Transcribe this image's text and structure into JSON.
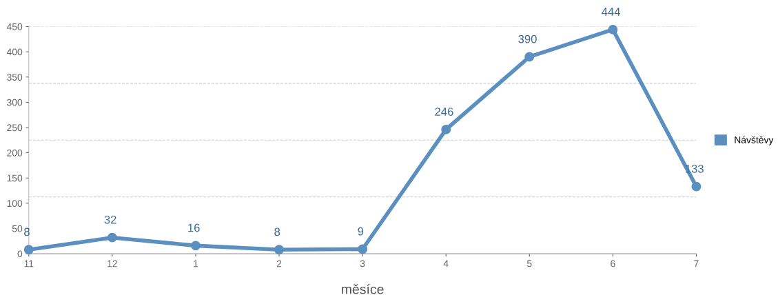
{
  "chart_data": {
    "type": "line",
    "xlabel": "měsíce",
    "categories": [
      "11",
      "12",
      "1",
      "2",
      "3",
      "4",
      "5",
      "6",
      "7"
    ],
    "series": [
      {
        "name": "Návštěvy",
        "color": "#5b8fc0",
        "values": [
          8,
          32,
          16,
          8,
          9,
          246,
          390,
          444,
          133
        ]
      }
    ],
    "ylim": [
      0,
      450
    ],
    "yticks": [
      0,
      50,
      100,
      150,
      200,
      250,
      300,
      350,
      400,
      450
    ],
    "ref_lines": [
      {
        "axis": "y",
        "value": 112.5,
        "label": null,
        "color": "#cccccc",
        "line_style": "dashed"
      },
      {
        "axis": "y",
        "value": 225,
        "label": null,
        "color": "#cccccc",
        "line_style": "dashed"
      },
      {
        "axis": "y",
        "value": 337.5,
        "label": null,
        "color": "#cccccc",
        "line_style": "dashed"
      },
      {
        "axis": "y",
        "value": 450,
        "label": null,
        "color": "#cccccc",
        "line_style": "dashed"
      }
    ],
    "data_labels": true,
    "legend": "right",
    "marker": "circle",
    "line_style": "solid",
    "grid": false
  }
}
